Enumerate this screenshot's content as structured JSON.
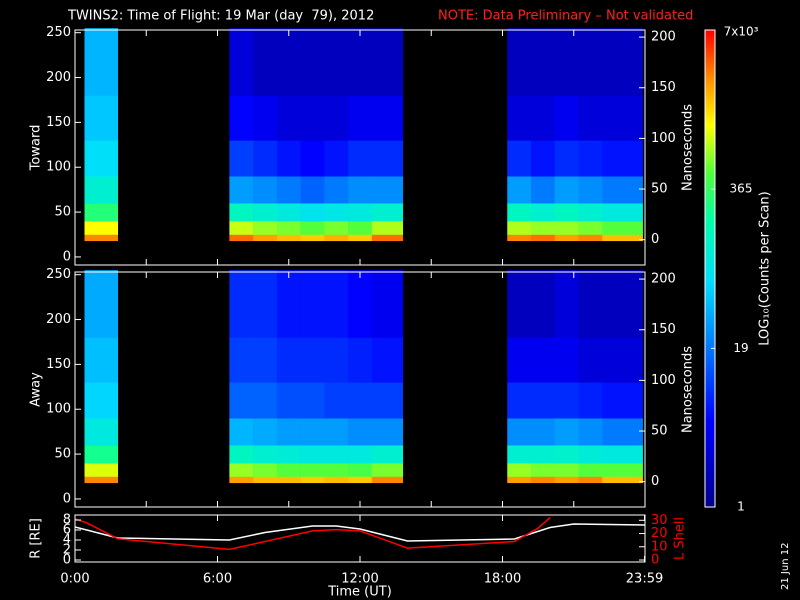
{
  "title": "TWINS2: Time of Flight: 19 Mar (day  79), 2012",
  "note": "NOTE: Data Preliminary – Not validated",
  "date_stamp": "21 Jun 12",
  "colorbar": {
    "label": "LOG₁₀(Counts per Scan)",
    "lim": [
      1,
      7000
    ],
    "log": true,
    "colormap": "rainbow",
    "ticks": [
      {
        "value": 1,
        "label": "1"
      },
      {
        "value": 19,
        "label": "19"
      },
      {
        "value": 365,
        "label": "365"
      },
      {
        "value": 7000,
        "label": "7x10³"
      }
    ]
  },
  "chart_data": [
    {
      "type": "heatmap",
      "ylabel": "Toward",
      "y2label": "Nanoseconds",
      "xlim": [
        0,
        24
      ],
      "xticks": [
        0,
        3,
        6,
        9,
        12,
        15,
        18,
        21
      ],
      "ylim": [
        -9,
        253
      ],
      "yticks": [
        0,
        50,
        100,
        150,
        200,
        250
      ],
      "y2lim": [
        -25,
        207
      ],
      "y2ticks": [
        0,
        50,
        100,
        150,
        200
      ],
      "x_edges": [
        0.4,
        1.8,
        6.5,
        7.5,
        8.5,
        9.5,
        10.5,
        11.5,
        12.5,
        13.8,
        18.2,
        19.2,
        20.2,
        21.2,
        22.2,
        23.9
      ],
      "y_edges": [
        18,
        25,
        40,
        60,
        90,
        130,
        180,
        255
      ],
      "values": [
        [
          3000,
          1200,
          300,
          120,
          70,
          50,
          40
        ],
        null,
        [
          3500,
          900,
          150,
          30,
          10,
          5,
          3
        ],
        [
          2500,
          700,
          120,
          25,
          8,
          4,
          2
        ],
        [
          2000,
          600,
          100,
          20,
          6,
          3,
          2
        ],
        [
          1800,
          500,
          80,
          15,
          5,
          3,
          2
        ],
        [
          2200,
          600,
          90,
          20,
          6,
          3,
          2
        ],
        [
          1800,
          500,
          100,
          25,
          8,
          4,
          2
        ],
        [
          3500,
          800,
          120,
          25,
          8,
          4,
          2
        ],
        null,
        [
          3000,
          800,
          150,
          30,
          8,
          3,
          2
        ],
        [
          3500,
          700,
          120,
          20,
          6,
          3,
          2
        ],
        [
          2500,
          700,
          150,
          30,
          8,
          4,
          2
        ],
        [
          3000,
          600,
          120,
          25,
          7,
          3,
          2
        ],
        [
          2000,
          500,
          100,
          20,
          6,
          3,
          2
        ]
      ]
    },
    {
      "type": "heatmap",
      "ylabel": "Away",
      "y2label": "Nanoseconds",
      "xlim": [
        0,
        24
      ],
      "xticks": [
        0,
        3,
        6,
        9,
        12,
        15,
        18,
        21
      ],
      "ylim": [
        -9,
        253
      ],
      "yticks": [
        0,
        50,
        100,
        150,
        200,
        250
      ],
      "y2lim": [
        -25,
        207
      ],
      "y2ticks": [
        0,
        50,
        100,
        150,
        200
      ],
      "x_edges": [
        0.4,
        1.8,
        6.5,
        7.5,
        8.5,
        9.5,
        10.5,
        11.5,
        12.5,
        13.8,
        18.2,
        19.2,
        20.2,
        21.2,
        22.2,
        23.9
      ],
      "y_edges": [
        18,
        25,
        40,
        60,
        90,
        130,
        180,
        255
      ],
      "values": [
        [
          3000,
          1000,
          250,
          100,
          60,
          45,
          35
        ],
        null,
        [
          2500,
          700,
          150,
          40,
          15,
          10,
          8
        ],
        [
          2000,
          600,
          120,
          35,
          15,
          10,
          8
        ],
        [
          2000,
          500,
          110,
          30,
          12,
          8,
          6
        ],
        [
          1800,
          500,
          100,
          30,
          12,
          8,
          6
        ],
        [
          2000,
          500,
          100,
          30,
          10,
          8,
          6
        ],
        [
          1800,
          450,
          100,
          25,
          10,
          7,
          5
        ],
        [
          3000,
          600,
          120,
          25,
          10,
          6,
          4
        ],
        null,
        [
          2500,
          700,
          120,
          25,
          8,
          4,
          2
        ],
        [
          3000,
          600,
          120,
          25,
          8,
          4,
          2
        ],
        [
          2500,
          600,
          130,
          30,
          8,
          4,
          3
        ],
        [
          3000,
          500,
          110,
          25,
          7,
          3,
          2
        ],
        [
          2000,
          500,
          100,
          20,
          6,
          3,
          2
        ]
      ]
    },
    {
      "type": "line",
      "ylabel": "R [RE]",
      "y2label": "L Shell",
      "xlabel": "Time (UT)",
      "xlim": [
        0,
        24
      ],
      "xticks": [
        {
          "value": 0,
          "label": "0:00"
        },
        {
          "value": 6,
          "label": "6:00"
        },
        {
          "value": 12,
          "label": "12:00"
        },
        {
          "value": 18,
          "label": "18:00"
        },
        {
          "value": 23.98,
          "label": "23:59"
        }
      ],
      "ylim": [
        -0.4,
        9
      ],
      "yticks": [
        0,
        2,
        4,
        6,
        8
      ],
      "y2lim": [
        -1.5,
        34
      ],
      "y2ticks": [
        0,
        10,
        20,
        30
      ],
      "y2color": "#ff0000",
      "series": [
        {
          "color": "#ffffff",
          "x": [
            0,
            1.8,
            6.5,
            8,
            10,
            11,
            12,
            14,
            18.5,
            20,
            21,
            23.98
          ],
          "values": [
            6.6,
            4.4,
            4,
            5.5,
            6.8,
            6.8,
            6.2,
            3.8,
            4.2,
            6.5,
            7.2,
            7
          ]
        },
        {
          "color": "#ff0000",
          "axis": "y2",
          "x": [
            0,
            0.5,
            1.8,
            6.5,
            8,
            10,
            11,
            12,
            14,
            18.5,
            19.5,
            20
          ],
          "values": [
            31,
            28,
            16,
            8,
            14,
            22,
            23,
            22,
            9,
            14,
            24,
            32
          ]
        }
      ]
    }
  ]
}
